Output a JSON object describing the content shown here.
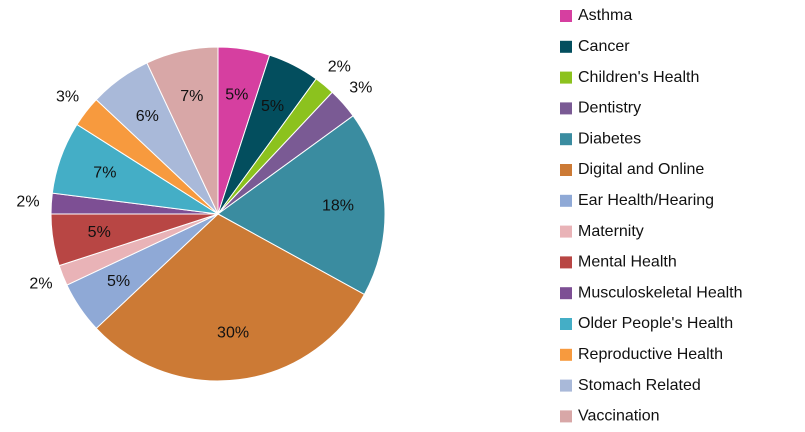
{
  "chart_data": {
    "type": "pie",
    "categories": [
      "Asthma",
      "Cancer",
      "Children's Health",
      "Dentistry",
      "Diabetes",
      "Digital and Online",
      "Ear Health/Hearing",
      "Maternity",
      "Mental Health",
      "Musculoskeletal Health",
      "Older People's Health",
      "Reproductive Health",
      "Stomach Related",
      "Vaccination"
    ],
    "values": [
      5,
      5,
      2,
      3,
      18,
      30,
      5,
      2,
      5,
      2,
      7,
      3,
      6,
      7
    ],
    "value_labels": [
      "5%",
      "5%",
      "2%",
      "3%",
      "18%",
      "30%",
      "5%",
      "2%",
      "5%",
      "2%",
      "7%",
      "3%",
      "6%",
      "7%"
    ],
    "colors": [
      "#d63fa0",
      "#034e5e",
      "#8cc21e",
      "#7a5a94",
      "#3a8ca0",
      "#cc7a35",
      "#8fa9d6",
      "#e9b3b7",
      "#b84644",
      "#7d4f94",
      "#44aec6",
      "#f79a3e",
      "#a9b9d9",
      "#d8a7a7"
    ],
    "legend": "right"
  }
}
